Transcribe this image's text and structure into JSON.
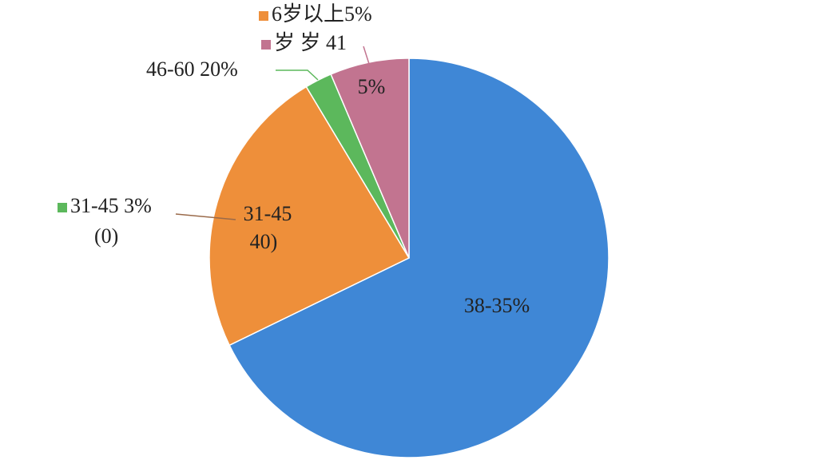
{
  "chart_data": {
    "type": "pie",
    "values": [
      67.8,
      23.6,
      2.2,
      6.4
    ],
    "colors": [
      "#3f87d6",
      "#ee8f3a",
      "#5cb85c",
      "#c27490"
    ],
    "slice_labels": [
      [
        "38-35%"
      ],
      [
        "31-45",
        "40)"
      ],
      [],
      [
        "5%"
      ]
    ],
    "callouts": [
      {
        "text": "6岁以上5%",
        "marker_color": "#ee8f3a"
      },
      {
        "text": "岁  岁  41",
        "marker_color": "#c27490"
      },
      {
        "text": "46-60   20%"
      },
      {
        "text": "31-45   3%",
        "marker_color": "#5cb85c"
      },
      {
        "text": "(0)"
      }
    ]
  }
}
